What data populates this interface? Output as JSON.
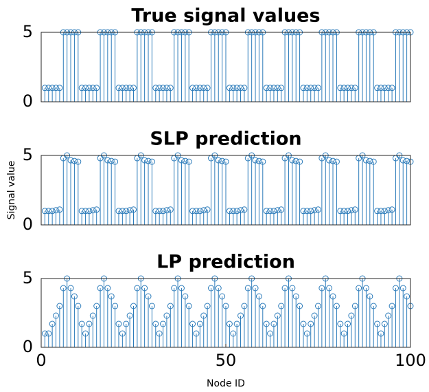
{
  "chart_data": [
    {
      "type": "stem",
      "title": "True signal values",
      "color": "#2b7bba",
      "x": [
        1,
        2,
        3,
        4,
        5,
        6,
        7,
        8,
        9,
        10,
        11,
        12,
        13,
        14,
        15,
        16,
        17,
        18,
        19,
        20,
        21,
        22,
        23,
        24,
        25,
        26,
        27,
        28,
        29,
        30,
        31,
        32,
        33,
        34,
        35,
        36,
        37,
        38,
        39,
        40,
        41,
        42,
        43,
        44,
        45,
        46,
        47,
        48,
        49,
        50,
        51,
        52,
        53,
        54,
        55,
        56,
        57,
        58,
        59,
        60,
        61,
        62,
        63,
        64,
        65,
        66,
        67,
        68,
        69,
        70,
        71,
        72,
        73,
        74,
        75,
        76,
        77,
        78,
        79,
        80,
        81,
        82,
        83,
        84,
        85,
        86,
        87,
        88,
        89,
        90,
        91,
        92,
        93,
        94,
        95,
        96,
        97,
        98,
        99,
        100
      ],
      "values": [
        1,
        1,
        1,
        1,
        1,
        5,
        5,
        5,
        5,
        5,
        1,
        1,
        1,
        1,
        1,
        5,
        5,
        5,
        5,
        5,
        1,
        1,
        1,
        1,
        1,
        5,
        5,
        5,
        5,
        5,
        1,
        1,
        1,
        1,
        1,
        5,
        5,
        5,
        5,
        5,
        1,
        1,
        1,
        1,
        1,
        5,
        5,
        5,
        5,
        5,
        1,
        1,
        1,
        1,
        1,
        5,
        5,
        5,
        5,
        5,
        1,
        1,
        1,
        1,
        1,
        5,
        5,
        5,
        5,
        5,
        1,
        1,
        1,
        1,
        1,
        5,
        5,
        5,
        5,
        5,
        1,
        1,
        1,
        1,
        1,
        5,
        5,
        5,
        5,
        5,
        1,
        1,
        1,
        1,
        1,
        5,
        5,
        5,
        5,
        5
      ],
      "xlim": [
        0,
        100
      ],
      "ylim": [
        0,
        5
      ],
      "yticks": [
        0,
        5
      ]
    },
    {
      "type": "stem",
      "title": "SLP prediction",
      "ylabel": "Signal value",
      "color": "#2b7bba",
      "x": [
        1,
        2,
        3,
        4,
        5,
        6,
        7,
        8,
        9,
        10,
        11,
        12,
        13,
        14,
        15,
        16,
        17,
        18,
        19,
        20,
        21,
        22,
        23,
        24,
        25,
        26,
        27,
        28,
        29,
        30,
        31,
        32,
        33,
        34,
        35,
        36,
        37,
        38,
        39,
        40,
        41,
        42,
        43,
        44,
        45,
        46,
        47,
        48,
        49,
        50,
        51,
        52,
        53,
        54,
        55,
        56,
        57,
        58,
        59,
        60,
        61,
        62,
        63,
        64,
        65,
        66,
        67,
        68,
        69,
        70,
        71,
        72,
        73,
        74,
        75,
        76,
        77,
        78,
        79,
        80,
        81,
        82,
        83,
        84,
        85,
        86,
        87,
        88,
        89,
        90,
        91,
        92,
        93,
        94,
        95,
        96,
        97,
        98,
        99,
        100
      ],
      "values": [
        1,
        1,
        1,
        1.05,
        1.1,
        4.8,
        5,
        4.65,
        4.6,
        4.55,
        1,
        1,
        1,
        1.05,
        1.1,
        4.8,
        5,
        4.65,
        4.6,
        4.55,
        1,
        1,
        1,
        1.05,
        1.1,
        4.8,
        5,
        4.65,
        4.6,
        4.55,
        1,
        1,
        1,
        1.05,
        1.1,
        4.8,
        5,
        4.65,
        4.6,
        4.55,
        1,
        1,
        1,
        1.05,
        1.1,
        4.8,
        5,
        4.65,
        4.6,
        4.55,
        1,
        1,
        1,
        1.05,
        1.1,
        4.8,
        5,
        4.65,
        4.6,
        4.55,
        1,
        1,
        1,
        1.05,
        1.1,
        4.8,
        5,
        4.65,
        4.6,
        4.55,
        1,
        1,
        1,
        1.05,
        1.1,
        4.8,
        5,
        4.65,
        4.6,
        4.55,
        1,
        1,
        1,
        1.05,
        1.1,
        4.8,
        5,
        4.65,
        4.6,
        4.55,
        1,
        1,
        1,
        1.05,
        1.1,
        4.8,
        5,
        4.65,
        4.6,
        4.55
      ],
      "xlim": [
        0,
        100
      ],
      "ylim": [
        0,
        5
      ],
      "yticks": [
        0,
        5
      ]
    },
    {
      "type": "stem",
      "title": "LP prediction",
      "xlabel": "Node ID",
      "color": "#2b7bba",
      "x": [
        1,
        2,
        3,
        4,
        5,
        6,
        7,
        8,
        9,
        10,
        11,
        12,
        13,
        14,
        15,
        16,
        17,
        18,
        19,
        20,
        21,
        22,
        23,
        24,
        25,
        26,
        27,
        28,
        29,
        30,
        31,
        32,
        33,
        34,
        35,
        36,
        37,
        38,
        39,
        40,
        41,
        42,
        43,
        44,
        45,
        46,
        47,
        48,
        49,
        50,
        51,
        52,
        53,
        54,
        55,
        56,
        57,
        58,
        59,
        60,
        61,
        62,
        63,
        64,
        65,
        66,
        67,
        68,
        69,
        70,
        71,
        72,
        73,
        74,
        75,
        76,
        77,
        78,
        79,
        80,
        81,
        82,
        83,
        84,
        85,
        86,
        87,
        88,
        89,
        90,
        91,
        92,
        93,
        94,
        95,
        96,
        97,
        98,
        99,
        100
      ],
      "values": [
        1,
        1,
        1.7,
        2.3,
        3,
        4.3,
        5,
        4.3,
        3.7,
        3,
        1.7,
        1,
        1.7,
        2.3,
        3,
        4.3,
        5,
        4.3,
        3.7,
        3,
        1.7,
        1,
        1.7,
        2.3,
        3,
        4.3,
        5,
        4.3,
        3.7,
        3,
        1.7,
        1,
        1.7,
        2.3,
        3,
        4.3,
        5,
        4.3,
        3.7,
        3,
        1.7,
        1,
        1.7,
        2.3,
        3,
        4.3,
        5,
        4.3,
        3.7,
        3,
        1.7,
        1,
        1.7,
        2.3,
        3,
        4.3,
        5,
        4.3,
        3.7,
        3,
        1.7,
        1,
        1.7,
        2.3,
        3,
        4.3,
        5,
        4.3,
        3.7,
        3,
        1.7,
        1,
        1.7,
        2.3,
        3,
        4.3,
        5,
        4.3,
        3.7,
        3,
        1.7,
        1,
        1.7,
        2.3,
        3,
        4.3,
        5,
        4.3,
        3.7,
        3,
        1.7,
        1,
        1.7,
        2.3,
        3,
        4.3,
        5,
        4.3,
        3.7,
        3
      ],
      "xlim": [
        0,
        100
      ],
      "ylim": [
        0,
        5
      ],
      "yticks": [
        0,
        5
      ],
      "xticks": [
        0,
        50,
        100
      ]
    }
  ]
}
